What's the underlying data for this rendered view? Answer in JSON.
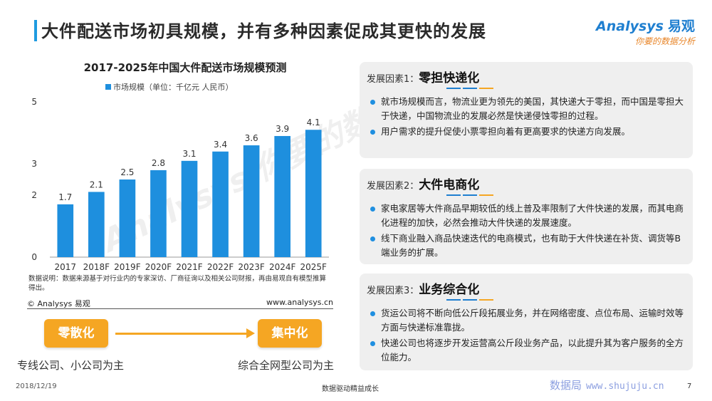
{
  "header": {
    "title": "大件配送市场初具规模，并有多种因素促成其更快的发展",
    "logo_brand": "Analysys",
    "logo_cn": "易观",
    "logo_tagline": "你要的数据分析"
  },
  "chart_data": {
    "type": "bar",
    "title": "2017-2025年中国大件配送市场规模预测",
    "categories": [
      "2017",
      "2018F",
      "2019F",
      "2020F",
      "2021F",
      "2022F",
      "2023F",
      "2024F",
      "2025F"
    ],
    "series": [
      {
        "name": "市场规模（单位：千亿元 人民币）",
        "values": [
          1.7,
          2.1,
          2.5,
          2.8,
          3.1,
          3.4,
          3.6,
          3.9,
          4.1
        ],
        "color": "#1e8fde"
      }
    ],
    "y_ticks": [
      "0",
      "2",
      "3",
      "5"
    ],
    "ylim": [
      0,
      5
    ],
    "grid": false,
    "legend_position": "top"
  },
  "notes": {
    "data_note": "数据说明：数据来源基于对行业内的专家深访、厂商征询以及相关公司财报，再由易观自有模型推算得出。",
    "copyright": "© Analysys 易观",
    "website": "www.analysys.cn"
  },
  "flow": {
    "from_label": "零散化",
    "to_label": "集中化",
    "from_caption": "专线公司、小公司为主",
    "to_caption": "综合全网型公司为主"
  },
  "factors": [
    {
      "prefix": "发展因素1：",
      "title": "零担快递化",
      "bullets": [
        "就市场规模而言，物流业更为领先的美国，其快递大于零担，而中国是零担大于快递，中国物流业的发展必然是快递侵蚀零担的过程。",
        "用户需求的提升促使小票零担向着有更高要求的快递方向发展。"
      ]
    },
    {
      "prefix": "发展因素2：",
      "title": "大件电商化",
      "bullets": [
        "家电家居等大件商品早期较低的线上普及率限制了大件快递的发展，而其电商化进程的加快，必然会推动大件快递的发展速度。",
        "线下商业融入商品快速迭代的电商模式，也有助于大件快递在补货、调货等B端业务的扩展。"
      ]
    },
    {
      "prefix": "发展因素3：",
      "title": "业务综合化",
      "bullets": [
        "货运公司将不断向低公斤段拓展业务，并在网络密度、点位布局、运输时效等方面与快递标准靠拢。",
        "快递公司也将逐步开发运营高公斤段业务产品，以此提升其为客户服务的全方位能力。"
      ]
    }
  ],
  "footer": {
    "date": "2018/12/19",
    "slogan": "数据驱动精益成长",
    "source_cn": "数据局",
    "source_url": "www.shujuju.cn",
    "page": "7"
  },
  "colors": {
    "accent_blue": "#1f7fd0",
    "bar_blue": "#1e8fde",
    "orange": "#f5a623",
    "panel_bg": "#efefef"
  }
}
